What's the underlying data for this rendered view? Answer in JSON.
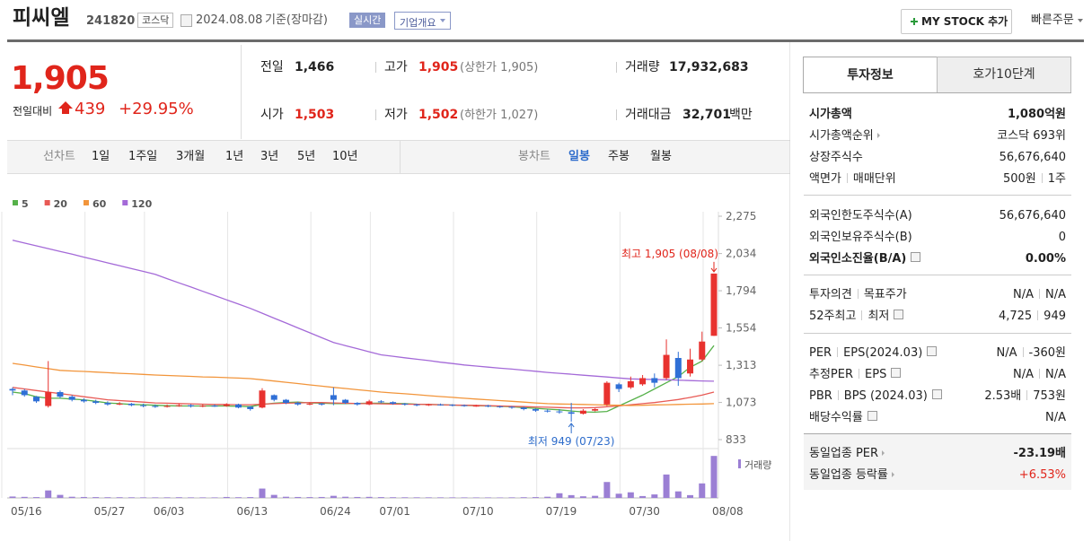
{
  "header": {
    "name": "피씨엘",
    "code": "241820",
    "market": "코스닥",
    "date": "2024.08.08",
    "basis": "기준(장마감)",
    "realtime": "실시간",
    "company_info": "기업개요",
    "mystock": "MY STOCK 추가",
    "quick_order": "빠른주문"
  },
  "quote": {
    "price": "1,905",
    "change_label": "전일대비",
    "change": "439",
    "change_pct": "+29.95%",
    "prev_label": "전일",
    "prev": "1,466",
    "high_label": "고가",
    "high": "1,905",
    "upper_limit": "(상한가 1,905)",
    "volume_label": "거래량",
    "volume": "17,932,683",
    "open_label": "시가",
    "open": "1,503",
    "low_label": "저가",
    "low": "1,502",
    "lower_limit": "(하한가 1,027)",
    "amount_label": "거래대금",
    "amount": "32,701",
    "amount_unit": "백만"
  },
  "tabs": {
    "line_chart": "선차트",
    "periods": [
      "1일",
      "1주일",
      "3개월",
      "1년",
      "3년",
      "5년",
      "10년"
    ],
    "candle_chart": "봉차트",
    "candle_periods": [
      "일봉",
      "주봉",
      "월봉"
    ]
  },
  "info": {
    "tabs": [
      "투자정보",
      "호가10단계"
    ],
    "rows": [
      {
        "label": [
          "시가총액"
        ],
        "value": [
          "1,080억원"
        ]
      },
      {
        "label": [
          "시가총액순위"
        ],
        "value": [
          "코스닥 693위"
        ]
      },
      {
        "label": [
          "상장주식수"
        ],
        "value": [
          "56,676,640"
        ]
      },
      {
        "label": [
          "액면가",
          "매매단위"
        ],
        "value": [
          "500원",
          "1주"
        ]
      },
      {
        "label": [
          "외국인한도주식수(A)"
        ],
        "value": [
          "56,676,640"
        ]
      },
      {
        "label": [
          "외국인보유주식수(B)"
        ],
        "value": [
          "0"
        ]
      },
      {
        "label": [
          "외국인소진율(B/A)"
        ],
        "value": [
          "0.00%"
        ]
      },
      {
        "label": [
          "투자의견",
          "목표주가"
        ],
        "value": [
          "N/A",
          "N/A"
        ]
      },
      {
        "label": [
          "52주최고",
          "최저"
        ],
        "value": [
          "4,725",
          "949"
        ]
      },
      {
        "label": [
          "PER",
          "EPS(2024.03)"
        ],
        "value": [
          "N/A",
          "-360원"
        ]
      },
      {
        "label": [
          "추정PER",
          "EPS"
        ],
        "value": [
          "N/A",
          "N/A"
        ]
      },
      {
        "label": [
          "PBR",
          "BPS (2024.03)"
        ],
        "value": [
          "2.53배",
          "753원"
        ]
      },
      {
        "label": [
          "배당수익률"
        ],
        "value": [
          "N/A"
        ]
      },
      {
        "label": [
          "동일업종 PER"
        ],
        "value": [
          "-23.19배"
        ]
      },
      {
        "label": [
          "동일업종 등락률"
        ],
        "value": [
          "+6.53%"
        ]
      }
    ]
  },
  "chart_data": {
    "type": "candlestick",
    "categories": [
      "05/16",
      null,
      null,
      null,
      null,
      null,
      null,
      "05/27",
      null,
      null,
      null,
      null,
      "06/03",
      null,
      null,
      null,
      null,
      null,
      null,
      "06/13",
      null,
      null,
      null,
      null,
      null,
      null,
      "06/24",
      null,
      null,
      null,
      null,
      "07/01",
      null,
      null,
      null,
      null,
      null,
      null,
      "07/10",
      null,
      null,
      null,
      null,
      null,
      null,
      "07/19",
      null,
      null,
      null,
      null,
      null,
      null,
      "07/30",
      null,
      null,
      null,
      null,
      null,
      null,
      "08/08"
    ],
    "open": [
      1160,
      1150,
      1110,
      1050,
      1140,
      1110,
      1090,
      1080,
      1070,
      1060,
      1065,
      1055,
      1050,
      1045,
      1050,
      1055,
      1048,
      1052,
      1050,
      1060,
      1045,
      1040,
      1120,
      1090,
      1070,
      1060,
      1065,
      1120,
      1090,
      1070,
      1060,
      1080,
      1075,
      1065,
      1060,
      1055,
      1060,
      1058,
      1055,
      1050,
      1052,
      1048,
      1045,
      1040,
      1030,
      1020,
      1015,
      1010,
      1000,
      1020,
      1060,
      1190,
      1170,
      1190,
      1230,
      1230,
      1360,
      1260,
      1350,
      1503
    ],
    "high": [
      1170,
      1160,
      1115,
      1340,
      1150,
      1120,
      1100,
      1090,
      1080,
      1075,
      1070,
      1065,
      1060,
      1060,
      1065,
      1062,
      1060,
      1060,
      1068,
      1065,
      1050,
      1165,
      1125,
      1095,
      1078,
      1072,
      1070,
      1170,
      1095,
      1075,
      1090,
      1088,
      1080,
      1070,
      1065,
      1065,
      1066,
      1062,
      1060,
      1058,
      1058,
      1052,
      1050,
      1045,
      1035,
      1028,
      1030,
      1070,
      1030,
      1035,
      1210,
      1200,
      1240,
      1250,
      1260,
      1480,
      1400,
      1420,
      1530,
      1905
    ],
    "low": [
      1120,
      1110,
      1070,
      1040,
      1100,
      1080,
      1072,
      1062,
      1052,
      1055,
      1048,
      1042,
      1038,
      1040,
      1045,
      1040,
      1042,
      1044,
      1045,
      1035,
      1020,
      1035,
      1080,
      1062,
      1052,
      1055,
      1052,
      1055,
      1062,
      1052,
      1055,
      1068,
      1058,
      1052,
      1048,
      1050,
      1052,
      1048,
      1045,
      1045,
      1042,
      1038,
      1032,
      1022,
      1012,
      1008,
      1000,
      949,
      995,
      1015,
      1050,
      1140,
      1160,
      1180,
      1170,
      1220,
      1180,
      1240,
      1340,
      1502
    ],
    "close": [
      1150,
      1120,
      1080,
      1140,
      1110,
      1090,
      1080,
      1070,
      1060,
      1065,
      1055,
      1050,
      1045,
      1050,
      1055,
      1048,
      1052,
      1050,
      1060,
      1040,
      1030,
      1150,
      1090,
      1070,
      1060,
      1065,
      1060,
      1090,
      1070,
      1060,
      1080,
      1075,
      1065,
      1060,
      1055,
      1060,
      1058,
      1055,
      1050,
      1052,
      1048,
      1045,
      1040,
      1030,
      1020,
      1015,
      1010,
      1000,
      1020,
      1030,
      1200,
      1160,
      1210,
      1230,
      1200,
      1380,
      1230,
      1350,
      1466,
      1905
    ],
    "up_color": "#e8322f",
    "down_color": "#2f6fd6",
    "ylim": [
      833,
      2275
    ],
    "yticks": [
      833,
      {
        "value": 1073,
        "label": "1,073"
      },
      {
        "value": 1313,
        "label": "1,313"
      },
      {
        "value": 1554,
        "label": "1,554"
      },
      {
        "value": 1794,
        "label": "1,794"
      },
      {
        "value": 2034,
        "label": "2,034"
      },
      {
        "value": 2275,
        "label": "2,275"
      }
    ],
    "moving_averages": [
      {
        "name": "5",
        "color": "#56b14a",
        "values": [
          1140,
          1130,
          1110,
          1100,
          1100,
          1095,
          1090,
          1080,
          1070,
          1065,
          1060,
          1058,
          1055,
          1052,
          1050,
          1050,
          1050,
          1050,
          1050,
          1048,
          1046,
          1060,
          1068,
          1072,
          1075,
          1070,
          1068,
          1066,
          1065,
          1067,
          1068,
          1068,
          1067,
          1065,
          1062,
          1060,
          1058,
          1056,
          1054,
          1052,
          1050,
          1048,
          1045,
          1040,
          1035,
          1030,
          1025,
          1018,
          1012,
          1010,
          1015,
          1050,
          1085,
          1120,
          1160,
          1200,
          1240,
          1300,
          1340,
          1440
        ]
      },
      {
        "name": "20",
        "color": "#e85a55",
        "values": [
          1170,
          1160,
          1150,
          1140,
          1130,
          1120,
          1110,
          1100,
          1090,
          1085,
          1080,
          1075,
          1070,
          1068,
          1066,
          1064,
          1062,
          1060,
          1060,
          1058,
          1058,
          1062,
          1065,
          1068,
          1070,
          1072,
          1072,
          1070,
          1068,
          1066,
          1065,
          1064,
          1063,
          1062,
          1061,
          1060,
          1058,
          1056,
          1055,
          1054,
          1052,
          1050,
          1048,
          1046,
          1044,
          1042,
          1040,
          1038,
          1038,
          1040,
          1045,
          1050,
          1058,
          1065,
          1072,
          1082,
          1092,
          1105,
          1120,
          1140
        ]
      },
      {
        "name": "60",
        "color": "#f2953b",
        "values": [
          1325,
          1314,
          1302,
          1291,
          1280,
          1276,
          1273,
          1269,
          1265,
          1261,
          1258,
          1254,
          1250,
          1247,
          1244,
          1241,
          1238,
          1236,
          1233,
          1230,
          1227,
          1219,
          1211,
          1203,
          1195,
          1186,
          1178,
          1170,
          1163,
          1155,
          1148,
          1140,
          1134,
          1129,
          1123,
          1117,
          1111,
          1106,
          1100,
          1095,
          1090,
          1085,
          1080,
          1075,
          1070,
          1065,
          1063,
          1062,
          1060,
          1058,
          1056,
          1055,
          1053,
          1055,
          1057,
          1058,
          1060,
          1062,
          1063,
          1065
        ]
      },
      {
        "name": "120",
        "color": "#a46ad8",
        "values": [
          2120,
          2102,
          2084,
          2066,
          2048,
          2030,
          2011,
          1993,
          1974,
          1956,
          1937,
          1919,
          1900,
          1872,
          1845,
          1818,
          1790,
          1763,
          1735,
          1708,
          1680,
          1649,
          1617,
          1586,
          1554,
          1523,
          1491,
          1460,
          1440,
          1420,
          1400,
          1380,
          1371,
          1361,
          1352,
          1343,
          1333,
          1324,
          1315,
          1308,
          1301,
          1294,
          1288,
          1281,
          1274,
          1267,
          1261,
          1255,
          1249,
          1243,
          1237,
          1231,
          1225,
          1223,
          1221,
          1219,
          1217,
          1214,
          1212,
          1210
        ]
      }
    ],
    "volume": {
      "name": "거래량",
      "color": "#9b7fd4",
      "ylim": [
        0,
        18000000
      ],
      "values": [
        600000,
        450000,
        350000,
        3200000,
        1300000,
        500000,
        400000,
        350000,
        300000,
        300000,
        280000,
        260000,
        250000,
        260000,
        300000,
        250000,
        240000,
        230000,
        400000,
        300000,
        350000,
        4000000,
        1300000,
        500000,
        400000,
        350000,
        400000,
        900000,
        500000,
        400000,
        450000,
        350000,
        300000,
        280000,
        260000,
        250000,
        250000,
        240000,
        230000,
        220000,
        220000,
        200000,
        250000,
        300000,
        350000,
        500000,
        2000000,
        1200000,
        700000,
        900000,
        6800000,
        1800000,
        2400000,
        800000,
        1500000,
        10000000,
        2800000,
        1200000,
        6200000,
        17932683
      ]
    },
    "annotations": {
      "high_label": "최고 1,905 (08/08)",
      "low_label": "최저 949 (07/23)"
    }
  }
}
